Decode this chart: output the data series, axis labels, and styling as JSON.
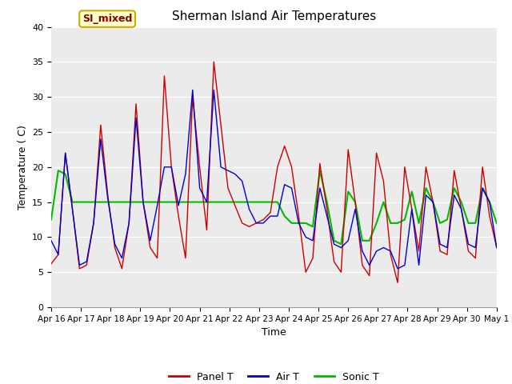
{
  "title": "Sherman Island Air Temperatures",
  "xlabel": "Time",
  "ylabel": "Temperature ( C)",
  "ylim": [
    0,
    40
  ],
  "yticks": [
    0,
    5,
    10,
    15,
    20,
    25,
    30,
    35,
    40
  ],
  "xtick_labels": [
    "Apr 16",
    "Apr 17",
    "Apr 18",
    "Apr 19",
    "Apr 20",
    "Apr 21",
    "Apr 22",
    "Apr 23",
    "Apr 24",
    "Apr 25",
    "Apr 26",
    "Apr 27",
    "Apr 28",
    "Apr 29",
    "Apr 30",
    "May 1"
  ],
  "plot_bg": "#ebebeb",
  "fig_bg": "#ffffff",
  "panel_color": "#cc0000",
  "air_color": "#0000cc",
  "sonic_color": "#00bb00",
  "grid_color": "#ffffff",
  "annotation_text": "SI_mixed",
  "panel_t": [
    6.2,
    7.5,
    22,
    14,
    5.5,
    6,
    12,
    26,
    16,
    8.5,
    5.5,
    12,
    29,
    15,
    8.5,
    7,
    33,
    20,
    13,
    7,
    30,
    20,
    11,
    35,
    26,
    17,
    14.5,
    12,
    11.5,
    12,
    12.5,
    13.5,
    20,
    23,
    20,
    13,
    5,
    7,
    20.5,
    14,
    6.5,
    5,
    22.5,
    15,
    6,
    4.5,
    22,
    18,
    7.5,
    3.5,
    20,
    14,
    8,
    20,
    15,
    8,
    7.5,
    19.5,
    14,
    8,
    7,
    20,
    13,
    8.5
  ],
  "air_t": [
    9.5,
    7.5,
    22,
    14,
    6,
    6.5,
    12,
    24,
    15.5,
    9,
    7,
    12,
    27,
    15,
    9.5,
    14.5,
    20,
    20,
    14.5,
    19,
    31,
    17,
    15,
    31,
    20,
    19.5,
    19,
    18,
    14,
    12,
    12,
    13,
    13,
    17.5,
    17,
    12,
    10,
    9.5,
    17,
    13,
    9,
    8.5,
    9.5,
    14,
    8,
    6,
    8,
    8.5,
    8,
    5.5,
    6,
    14,
    6,
    16,
    15,
    9,
    8.5,
    16,
    14,
    9,
    8.5,
    17,
    15,
    8.5
  ],
  "sonic_t": [
    12.5,
    19.5,
    19,
    15,
    15,
    15,
    15,
    15,
    15,
    15,
    15,
    15,
    15,
    15,
    15,
    15,
    15,
    15,
    15,
    15,
    15,
    15,
    15,
    15,
    15,
    15,
    15,
    15,
    15,
    15,
    15,
    15,
    15,
    13,
    12,
    12,
    12,
    11.5,
    19.5,
    15,
    9.5,
    9,
    16.5,
    15,
    9.5,
    9.5,
    12,
    15,
    12,
    12,
    12.5,
    16.5,
    12,
    17,
    15,
    12,
    12.5,
    17,
    15,
    12,
    12,
    17,
    15,
    12
  ]
}
